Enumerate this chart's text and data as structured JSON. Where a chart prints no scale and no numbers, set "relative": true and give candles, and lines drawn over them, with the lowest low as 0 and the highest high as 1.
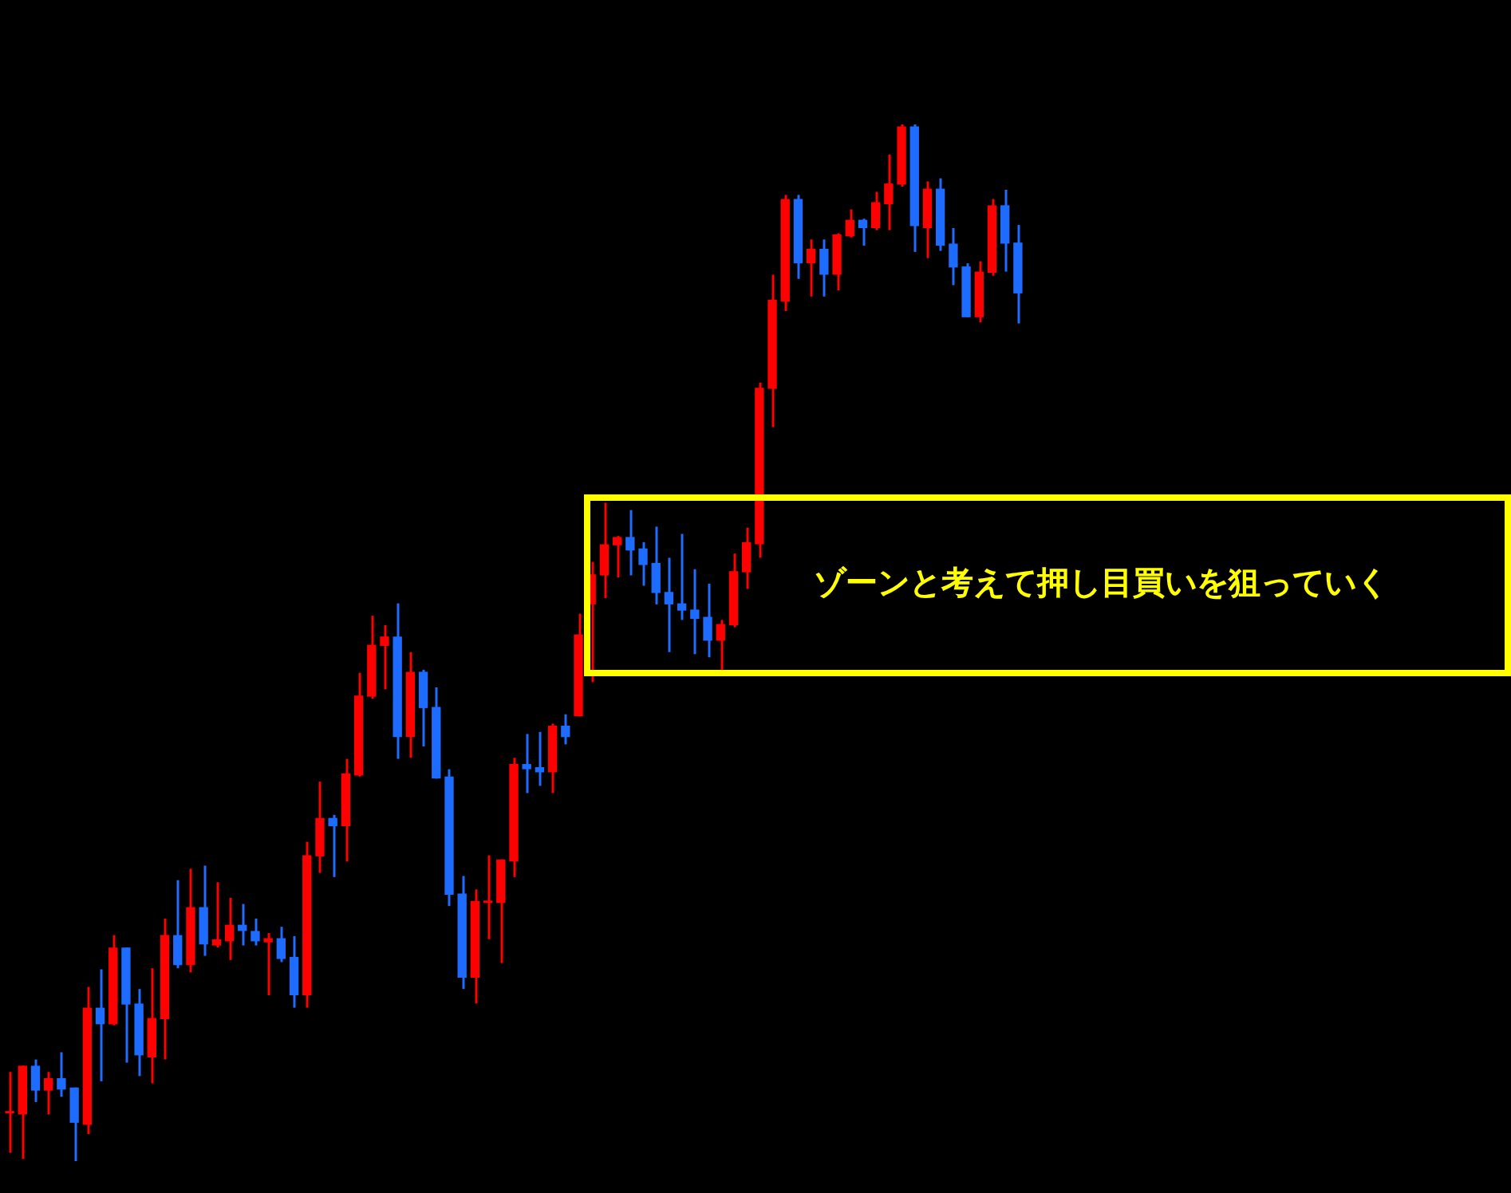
{
  "chart_data": {
    "type": "candlestick",
    "relative": true,
    "legend": false,
    "tick_labels": false,
    "categories": [
      null,
      null,
      null,
      null,
      null,
      null,
      null,
      null,
      null,
      null,
      null,
      null,
      null,
      null,
      null,
      null,
      null,
      null,
      null,
      null,
      null,
      null,
      null,
      null,
      null,
      null,
      null,
      null,
      null,
      null,
      null,
      null,
      null,
      null,
      null,
      null,
      null,
      null,
      null,
      null,
      null,
      null,
      null,
      null,
      null,
      null,
      null,
      null,
      null,
      null,
      null,
      null,
      null,
      null,
      null,
      null,
      null,
      null,
      null,
      null,
      null,
      null,
      null,
      null,
      null,
      null,
      null,
      null,
      null,
      null,
      null,
      null,
      null,
      null,
      null,
      null,
      null,
      null,
      null
    ],
    "ohlc": [
      [
        0.046,
        0.086,
        0.008,
        0.048
      ],
      [
        0.045,
        0.092,
        0.002,
        0.092
      ],
      [
        0.092,
        0.098,
        0.057,
        0.068
      ],
      [
        0.068,
        0.086,
        0.045,
        0.08
      ],
      [
        0.08,
        0.105,
        0.062,
        0.069
      ],
      [
        0.071,
        0.071,
        0,
        0.037
      ],
      [
        0.035,
        0.168,
        0.026,
        0.148
      ],
      [
        0.148,
        0.185,
        0.077,
        0.132
      ],
      [
        0.132,
        0.218,
        0.131,
        0.206
      ],
      [
        0.206,
        0.206,
        0.095,
        0.151
      ],
      [
        0.152,
        0.166,
        0.082,
        0.102
      ],
      [
        0.1,
        0.186,
        0.075,
        0.138
      ],
      [
        0.137,
        0.234,
        0.098,
        0.218
      ],
      [
        0.218,
        0.271,
        0.186,
        0.189
      ],
      [
        0.189,
        0.282,
        0.182,
        0.245
      ],
      [
        0.245,
        0.285,
        0.198,
        0.209
      ],
      [
        0.208,
        0.269,
        0.206,
        0.214
      ],
      [
        0.212,
        0.254,
        0.194,
        0.228
      ],
      [
        0.228,
        0.248,
        0.208,
        0.222
      ],
      [
        0.222,
        0.234,
        0.208,
        0.212
      ],
      [
        0.211,
        0.22,
        0.16,
        0.215
      ],
      [
        0.215,
        0.226,
        0.192,
        0.195
      ],
      [
        0.197,
        0.217,
        0.148,
        0.16
      ],
      [
        0.16,
        0.308,
        0.148,
        0.295
      ],
      [
        0.294,
        0.366,
        0.278,
        0.331
      ],
      [
        0.331,
        0.334,
        0.274,
        0.323
      ],
      [
        0.323,
        0.388,
        0.289,
        0.374
      ],
      [
        0.372,
        0.471,
        0.371,
        0.449
      ],
      [
        0.448,
        0.526,
        0.446,
        0.498
      ],
      [
        0.497,
        0.517,
        0.455,
        0.506
      ],
      [
        0.506,
        0.538,
        0.388,
        0.409
      ],
      [
        0.409,
        0.491,
        0.389,
        0.472
      ],
      [
        0.472,
        0.474,
        0.4,
        0.437
      ],
      [
        0.438,
        0.457,
        0.369,
        0.369
      ],
      [
        0.371,
        0.378,
        0.246,
        0.257
      ],
      [
        0.258,
        0.275,
        0.166,
        0.177
      ],
      [
        0.177,
        0.262,
        0.152,
        0.251
      ],
      [
        0.249,
        0.295,
        0.214,
        0.251
      ],
      [
        0.249,
        0.291,
        0.191,
        0.291
      ],
      [
        0.289,
        0.389,
        0.274,
        0.383
      ],
      [
        0.383,
        0.412,
        0.355,
        0.378
      ],
      [
        0.38,
        0.414,
        0.362,
        0.375
      ],
      [
        0.375,
        0.422,
        0.355,
        0.42
      ],
      [
        0.42,
        0.431,
        0.402,
        0.409
      ],
      [
        0.429,
        0.528,
        0.429,
        0.508
      ],
      [
        0.537,
        0.578,
        0.462,
        0.566
      ],
      [
        0.565,
        0.635,
        0.543,
        0.595
      ],
      [
        0.594,
        0.603,
        0.563,
        0.602
      ],
      [
        0.602,
        0.628,
        0.565,
        0.589
      ],
      [
        0.591,
        0.597,
        0.555,
        0.575
      ],
      [
        0.577,
        0.612,
        0.537,
        0.548
      ],
      [
        0.549,
        0.582,
        0.491,
        0.537
      ],
      [
        0.538,
        0.605,
        0.522,
        0.531
      ],
      [
        0.532,
        0.571,
        0.489,
        0.523
      ],
      [
        0.525,
        0.557,
        0.486,
        0.502
      ],
      [
        0.502,
        0.522,
        0.474,
        0.518
      ],
      [
        0.517,
        0.586,
        0.515,
        0.569
      ],
      [
        0.568,
        0.611,
        0.552,
        0.597
      ],
      [
        0.595,
        0.751,
        0.582,
        0.746
      ],
      [
        0.745,
        0.855,
        0.708,
        0.831
      ],
      [
        0.829,
        0.932,
        0.82,
        0.928
      ],
      [
        0.928,
        0.932,
        0.851,
        0.866
      ],
      [
        0.866,
        0.889,
        0.834,
        0.88
      ],
      [
        0.88,
        0.889,
        0.834,
        0.855
      ],
      [
        0.855,
        0.895,
        0.84,
        0.894
      ],
      [
        0.892,
        0.918,
        0.891,
        0.908
      ],
      [
        0.908,
        0.909,
        0.883,
        0.9
      ],
      [
        0.9,
        0.935,
        0.898,
        0.925
      ],
      [
        0.923,
        0.971,
        0.898,
        0.943
      ],
      [
        0.942,
        1,
        0.94,
        0.998
      ],
      [
        0.998,
        1,
        0.877,
        0.902
      ],
      [
        0.9,
        0.945,
        0.871,
        0.938
      ],
      [
        0.938,
        0.948,
        0.878,
        0.883
      ],
      [
        0.885,
        0.9,
        0.845,
        0.862
      ],
      [
        0.863,
        0.866,
        0.814,
        0.814
      ],
      [
        0.814,
        0.868,
        0.809,
        0.858
      ],
      [
        0.857,
        0.928,
        0.854,
        0.922
      ],
      [
        0.922,
        0.937,
        0.858,
        0.885
      ],
      [
        0.886,
        0.903,
        0.808,
        0.837
      ]
    ],
    "colors": [
      "#ff0000",
      "#ff0000",
      "#1e6cff",
      "#ff0000",
      "#1e6cff",
      "#1e6cff",
      "#ff0000",
      "#1e6cff",
      "#ff0000",
      "#1e6cff",
      "#1e6cff",
      "#ff0000",
      "#ff0000",
      "#1e6cff",
      "#ff0000",
      "#1e6cff",
      "#ff0000",
      "#ff0000",
      "#1e6cff",
      "#1e6cff",
      "#ff0000",
      "#1e6cff",
      "#1e6cff",
      "#ff0000",
      "#ff0000",
      "#1e6cff",
      "#ff0000",
      "#ff0000",
      "#ff0000",
      "#ff0000",
      "#1e6cff",
      "#ff0000",
      "#1e6cff",
      "#1e6cff",
      "#1e6cff",
      "#1e6cff",
      "#ff0000",
      "#ff0000",
      "#ff0000",
      "#ff0000",
      "#1e6cff",
      "#1e6cff",
      "#ff0000",
      "#1e6cff",
      "#ff0000",
      "#ff0000",
      "#ff0000",
      "#ff0000",
      "#1e6cff",
      "#1e6cff",
      "#1e6cff",
      "#1e6cff",
      "#1e6cff",
      "#1e6cff",
      "#1e6cff",
      "#ff0000",
      "#ff0000",
      "#ff0000",
      "#ff0000",
      "#ff0000",
      "#ff0000",
      "#1e6cff",
      "#ff0000",
      "#1e6cff",
      "#ff0000",
      "#ff0000",
      "#1e6cff",
      "#ff0000",
      "#ff0000",
      "#ff0000",
      "#1e6cff",
      "#ff0000",
      "#1e6cff",
      "#1e6cff",
      "#1e6cff",
      "#ff0000",
      "#ff0000",
      "#1e6cff",
      "#1e6cff"
    ],
    "annotations": [
      "ゾーンと考えて押し目買いを狙っていく"
    ]
  }
}
